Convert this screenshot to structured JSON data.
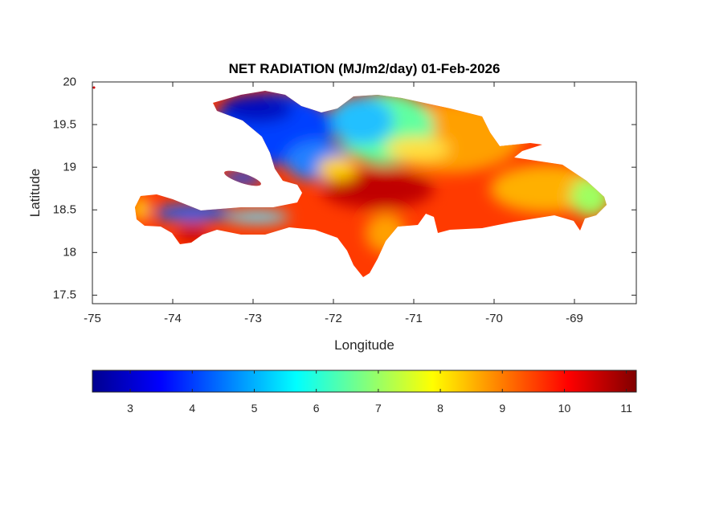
{
  "chart_data": {
    "type": "heatmap",
    "title": "NET RADIATION (MJ/m2/day) 01-Feb-2026",
    "xlabel": "Longitude",
    "ylabel": "Latitude",
    "xlim": [
      -75,
      -68.23
    ],
    "ylim": [
      17.4,
      20
    ],
    "xticks": [
      "-75",
      "-74",
      "-73",
      "-72",
      "-71",
      "-70",
      "-69"
    ],
    "xtick_values": [
      -75,
      -74,
      -73,
      -72,
      -71,
      -70,
      -69
    ],
    "yticks": [
      "17.5",
      "18",
      "18.5",
      "19",
      "19.5",
      "20"
    ],
    "ytick_values": [
      17.5,
      18,
      18.5,
      19,
      19.5,
      20
    ],
    "colormap": "jet",
    "colorbar": {
      "location": "bottom",
      "range": [
        2.39,
        11.16
      ],
      "ticks": [
        "3",
        "4",
        "5",
        "6",
        "7",
        "8",
        "9",
        "10",
        "11"
      ],
      "tick_values": [
        3,
        4,
        5,
        6,
        7,
        8,
        9,
        10,
        11
      ]
    },
    "grid": false,
    "regions_summary": [
      {
        "area": "northwest Haiti",
        "approx_value": 3.5
      },
      {
        "area": "north-central Hispaniola",
        "approx_value": 6
      },
      {
        "area": "central Dominican Republic",
        "approx_value": 10
      },
      {
        "area": "southern Haiti peninsula",
        "approx_value": 5
      },
      {
        "area": "eastern Dominican Republic",
        "approx_value": 8
      }
    ]
  }
}
